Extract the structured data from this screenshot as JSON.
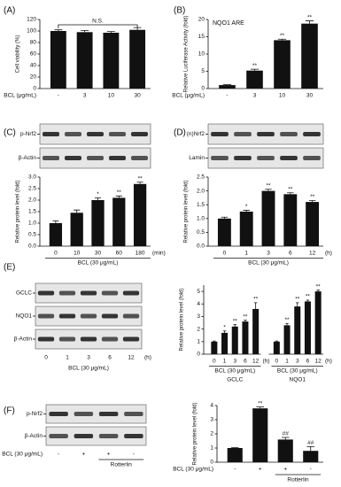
{
  "chart_data": [
    {
      "type": "bar",
      "panel_label": "(A)",
      "ylabel": "Cell viability (%)",
      "x_label": "BCL (μg/mL)",
      "categories": [
        "-",
        "3",
        "10",
        "30"
      ],
      "values": [
        100,
        98,
        97,
        102
      ],
      "errors": [
        2,
        3,
        2,
        4
      ],
      "annotation": "N.S.",
      "ylim": [
        0,
        120
      ],
      "yticks": [
        0,
        20,
        40,
        60,
        80,
        100,
        120
      ],
      "color": "#111111"
    },
    {
      "type": "bar",
      "panel_label": "(B)",
      "title": "NQO1 ARE",
      "ylabel": "Relative Luciferase Activity (fold)",
      "x_label": "BCL (μg/mL)",
      "categories": [
        "-",
        "3",
        "10",
        "30"
      ],
      "values": [
        1,
        5.2,
        14,
        18.8
      ],
      "errors": [
        0.1,
        0.4,
        0.3,
        0.8
      ],
      "labels": [
        null,
        "**",
        "**",
        "**"
      ],
      "ylim": [
        0,
        20
      ],
      "yticks": [
        0,
        5,
        10,
        15,
        20
      ],
      "color": "#111111"
    },
    {
      "type": "bar",
      "panel_label": "(C)",
      "blot_labels": [
        "p-Nrf2",
        "β-Actin"
      ],
      "ylabel": "Relative protein level (fold)",
      "x_label": "BCL (30 μg/mL)",
      "x_unit": "(min)",
      "categories": [
        "0",
        "10",
        "30",
        "60",
        "180"
      ],
      "values": [
        1.0,
        1.45,
        2.0,
        2.1,
        2.7
      ],
      "errors": [
        0.1,
        0.12,
        0.1,
        0.08,
        0.08
      ],
      "labels": [
        null,
        null,
        "*",
        "**",
        "**"
      ],
      "ylim": [
        0,
        3
      ],
      "yticks": [
        {
          "value": 0,
          "label": "0.0"
        },
        0.5,
        {
          "value": 1,
          "label": "1.0"
        },
        1.5,
        {
          "value": 2,
          "label": "2.0"
        },
        2.5,
        {
          "value": 3,
          "label": "3.0"
        }
      ],
      "color": "#111111"
    },
    {
      "type": "bar",
      "panel_label": "(D)",
      "blot_labels": [
        "(n)Nrf2",
        "Lamin"
      ],
      "ylabel": "Relative protein level (fold)",
      "x_label": "BCL (30 μg/mL)",
      "x_unit": "(h)",
      "categories": [
        "0",
        "1",
        "3",
        "6",
        "12"
      ],
      "values": [
        1.0,
        1.25,
        2.0,
        1.88,
        1.6
      ],
      "errors": [
        0.05,
        0.05,
        0.06,
        0.05,
        0.05
      ],
      "labels": [
        null,
        "*",
        "**",
        "**",
        "**"
      ],
      "ylim": [
        0,
        2.5
      ],
      "yticks": [
        {
          "value": 0,
          "label": "0.0"
        },
        0.5,
        {
          "value": 1,
          "label": "1.0"
        },
        1.5,
        {
          "value": 2,
          "label": "2.0"
        },
        2.5
      ],
      "color": "#111111"
    },
    {
      "type": "bar",
      "panel_label": "(E)",
      "blot_labels": [
        "GCLC",
        "NQO1",
        "β-Actin"
      ],
      "ylabel": "Relative protein level (fold)",
      "x_label": "BCL (30 μg/mL)",
      "x_unit": "(h)",
      "categories": [
        "0",
        "1",
        "3",
        "6",
        "12"
      ],
      "groups": [
        {
          "name": "GCLC",
          "values": [
            1,
            1.7,
            2.2,
            2.6,
            3.6
          ],
          "errors": [
            0.05,
            0.15,
            0.15,
            0.1,
            0.5
          ],
          "labels": [
            null,
            "*",
            "**",
            "**",
            "**"
          ]
        },
        {
          "name": "NQO1",
          "values": [
            1,
            2.3,
            3.8,
            4.2,
            5.0
          ],
          "errors": [
            0.05,
            0.15,
            0.3,
            0.1,
            0.1
          ],
          "labels": [
            null,
            "**",
            "**",
            "**",
            "**"
          ]
        }
      ],
      "ylim": [
        0,
        5.5
      ],
      "yticks": [
        0,
        1,
        2,
        3,
        4,
        5
      ],
      "color": "#111111"
    },
    {
      "type": "bar",
      "panel_label": "(F)",
      "blot_labels": [
        "p-Nrf2",
        "β-Actin"
      ],
      "ylabel": "Relative protein level (fold)",
      "x_label": "BCL (30 μg/mL)",
      "bracket_label": "Rotterlin",
      "categories": [
        "-",
        "+",
        "+",
        "-"
      ],
      "values": [
        1.0,
        3.8,
        1.6,
        0.8
      ],
      "errors": [
        0.03,
        0.1,
        0.15,
        0.3
      ],
      "labels": [
        null,
        "**",
        "##",
        "##"
      ],
      "ylim": [
        0,
        4
      ],
      "yticks": [
        0,
        1,
        2,
        3,
        4
      ],
      "color": "#111111"
    }
  ]
}
